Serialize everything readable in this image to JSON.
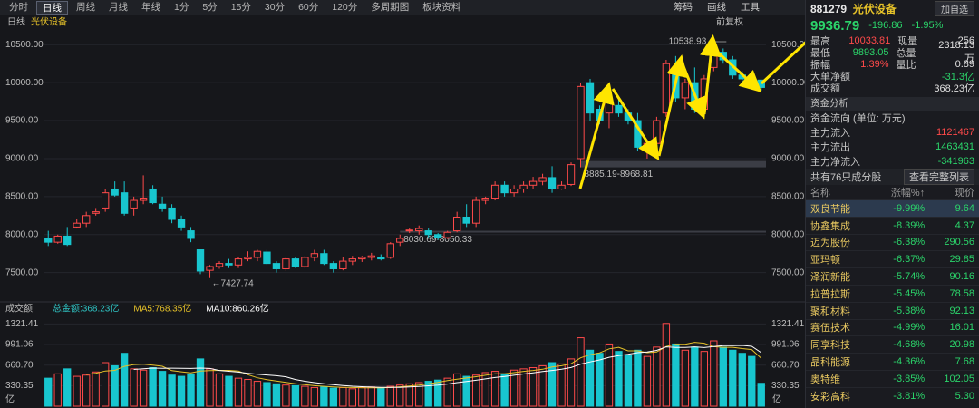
{
  "toolbar": {
    "tabs": [
      "分时",
      "日线",
      "周线",
      "月线",
      "年线",
      "1分",
      "5分",
      "15分",
      "30分",
      "60分",
      "120分",
      "多周期图",
      "板块资料"
    ],
    "active": "日线",
    "tools": [
      "筹码",
      "画线",
      "工具"
    ]
  },
  "chart_data": [
    {
      "type": "candlestick",
      "title": "光伏设备",
      "period": "日线",
      "adjust": "前复权",
      "up_color": "#ff4a4a",
      "down_color": "#18c6cf",
      "ylim": [
        7150,
        10670
      ],
      "yticks": [
        {
          "value": 10500,
          "label": "10500.00"
        },
        {
          "value": 10000,
          "label": "10000.00"
        },
        {
          "value": 9500,
          "label": "9500.00"
        },
        {
          "value": 9000,
          "label": "9000.00"
        },
        {
          "value": 8500,
          "label": "8500.00"
        },
        {
          "value": 8000,
          "label": "8000.00"
        },
        {
          "value": 7500,
          "label": "7500.00"
        }
      ],
      "open": [
        7950,
        7900,
        7980,
        8100,
        8150,
        8280,
        8350,
        8600,
        8550,
        8350,
        8450,
        8600,
        8400,
        8350,
        8200,
        8050,
        7800,
        7530,
        7580,
        7620,
        7600,
        7680,
        7700,
        7770,
        7620,
        7550,
        7680,
        7580,
        7700,
        7750,
        7620,
        7550,
        7650,
        7680,
        7700,
        7700,
        7700,
        7900,
        8050,
        8050,
        8050,
        8000,
        7960,
        8050,
        8230,
        8150,
        8450,
        8480,
        8650,
        8550,
        8600,
        8650,
        8700,
        8750,
        8600,
        8660,
        9000,
        10000,
        9650,
        9600,
        9700,
        9600,
        9500,
        9100,
        9200,
        9600,
        10200,
        9800,
        10000,
        9650,
        10200,
        10400,
        10300,
        10100,
        10050,
        10033.81
      ],
      "high": [
        8050,
        8000,
        8100,
        8200,
        8300,
        8350,
        8600,
        8700,
        8700,
        8500,
        8780,
        8650,
        8500,
        8400,
        8250,
        8100,
        7800,
        7600,
        7650,
        7680,
        7700,
        7780,
        7800,
        7800,
        7650,
        7700,
        7700,
        7720,
        7800,
        7800,
        7650,
        7700,
        7720,
        7720,
        7760,
        7740,
        7900,
        8000,
        8080,
        8120,
        8080,
        8020,
        8050,
        8300,
        8400,
        8500,
        8500,
        8700,
        8700,
        8650,
        8700,
        8760,
        8800,
        8900,
        8700,
        8950,
        10000,
        10050,
        9700,
        9800,
        9800,
        9650,
        9600,
        9250,
        9550,
        10300,
        10350,
        10050,
        10200,
        10100,
        10538.93,
        10450,
        10350,
        10150,
        10100,
        10033.81
      ],
      "low": [
        7850,
        7880,
        7850,
        8080,
        8100,
        8250,
        8300,
        8500,
        8250,
        8250,
        8400,
        8400,
        8300,
        8150,
        8050,
        7900,
        7480,
        7427.74,
        7550,
        7560,
        7560,
        7650,
        7650,
        7600,
        7500,
        7520,
        7560,
        7560,
        7650,
        7600,
        7500,
        7530,
        7600,
        7640,
        7660,
        7660,
        7680,
        7850,
        8020,
        8000,
        7960,
        7930,
        7940,
        8030,
        8100,
        8100,
        8400,
        8450,
        8500,
        8500,
        8550,
        8600,
        8650,
        8550,
        8590,
        8640,
        8885.19,
        9500,
        9450,
        9400,
        9550,
        9450,
        9100,
        9000,
        9150,
        9550,
        9750,
        9650,
        9600,
        9600,
        10150,
        10250,
        10050,
        9950,
        9950,
        9893.05
      ],
      "close": [
        7900,
        7980,
        7870,
        8150,
        8250,
        8300,
        8550,
        8520,
        8280,
        8450,
        8480,
        8420,
        8350,
        8200,
        8100,
        7950,
        7520,
        7580,
        7620,
        7600,
        7680,
        7700,
        7780,
        7620,
        7550,
        7680,
        7580,
        7700,
        7750,
        7620,
        7550,
        7650,
        7680,
        7700,
        7720,
        7680,
        7880,
        7950,
        8060,
        8080,
        8000,
        7960,
        8030,
        8230,
        8150,
        8450,
        8480,
        8650,
        8550,
        8600,
        8650,
        8700,
        8750,
        8600,
        8650,
        8920,
        9950,
        9600,
        9500,
        9750,
        9600,
        9500,
        9150,
        9200,
        9500,
        10250,
        9800,
        10000,
        9650,
        10050,
        10400,
        10300,
        10100,
        10050,
        10000,
        9936.79
      ],
      "annotations": [
        {
          "label": "10538.93",
          "value": 10538.93
        },
        {
          "label": "8885.19-8968.81",
          "range": [
            8885.19,
            8968.81
          ]
        },
        {
          "label": "8030.69-8050.33",
          "range": [
            8030.69,
            8050.33
          ]
        },
        {
          "label": "7427.74",
          "value": 7427.74
        }
      ]
    },
    {
      "type": "bar",
      "title": "成交额",
      "unit": "亿",
      "ylim": [
        0,
        1400
      ],
      "yticks": [
        1321.41,
        991.06,
        {
          "value": 660.7,
          "label": "660.70"
        },
        330.35
      ],
      "series": [
        {
          "name": "总金额:368.23亿",
          "color": "#2fc5c5",
          "values": [
            450,
            520,
            600,
            480,
            500,
            550,
            700,
            650,
            850,
            600,
            580,
            620,
            560,
            500,
            480,
            520,
            760,
            600,
            520,
            480,
            450,
            430,
            400,
            380,
            360,
            340,
            330,
            320,
            300,
            310,
            290,
            300,
            280,
            300,
            310,
            290,
            320,
            340,
            360,
            380,
            400,
            420,
            450,
            520,
            480,
            500,
            540,
            560,
            520,
            580,
            600,
            620,
            650,
            700,
            680,
            760,
            1100,
            900,
            850,
            1000,
            880,
            820,
            900,
            800,
            950,
            1330,
            1000,
            900,
            950,
            880,
            1050,
            950,
            900,
            850,
            800,
            368.23
          ]
        },
        {
          "name": "MA5:768.35亿",
          "color": "#e6c229",
          "values": [
            null,
            null,
            null,
            null,
            510,
            530,
            566,
            576,
            640,
            670,
            676,
            660,
            642,
            572,
            552,
            536,
            564,
            572,
            576,
            576,
            566,
            506,
            456,
            428,
            404,
            382,
            362,
            346,
            330,
            320,
            310,
            304,
            300,
            296,
            296,
            296,
            300,
            312,
            324,
            338,
            360,
            384,
            412,
            434,
            454,
            474,
            498,
            520,
            520,
            540,
            560,
            574,
            594,
            630,
            650,
            682,
            778,
            828,
            858,
            922,
            946,
            890,
            890,
            860,
            870,
            960,
            996,
            996,
            1026,
            1012,
            956,
            946,
            946,
            926,
            910,
            768.35
          ]
        },
        {
          "name": "MA10:860.26亿",
          "color": "#ffffff",
          "values": [
            null,
            null,
            null,
            null,
            null,
            null,
            null,
            null,
            null,
            590,
            603,
            613,
            609,
            611,
            609,
            606,
            612,
            607,
            574,
            562,
            549,
            530,
            514,
            502,
            490,
            472,
            429,
            401,
            379,
            362,
            346,
            333,
            321,
            313,
            308,
            303,
            302,
            304,
            310,
            317,
            328,
            340,
            356,
            379,
            396,
            417,
            439,
            461,
            477,
            497,
            517,
            537,
            557,
            575,
            595,
            621,
            677,
            711,
            744,
            786,
            814,
            834,
            860,
            870,
            897,
            954,
            944,
            944,
            954,
            942,
            959,
            972,
            972,
            977,
            962,
            860.26
          ]
        }
      ]
    }
  ],
  "quote": {
    "code": "881279",
    "name": "光伏设备",
    "add_button": "加自选",
    "price": "9936.79",
    "change": "-196.86",
    "change_pct": "-1.95%",
    "stats": [
      [
        "最高",
        "10033.81",
        "现量",
        "256"
      ],
      [
        "最低",
        "9893.05",
        "总量",
        "2318.13万"
      ],
      [
        "振幅",
        "1.39%",
        "量比",
        "0.89"
      ]
    ],
    "big_net": [
      "大单净额",
      "-31.3亿"
    ],
    "turnover": [
      "成交额",
      "368.23亿"
    ]
  },
  "fund": {
    "section": "资金分析",
    "header": "资金流向 (单位: 万元)",
    "rows": [
      [
        "主力流入",
        "1121467"
      ],
      [
        "主力流出",
        "1463431"
      ],
      [
        "主力净流入",
        "-341963"
      ]
    ]
  },
  "constituents": {
    "count": "共有76只成分股",
    "link": "查看完整列表",
    "columns": [
      "名称",
      "涨幅%↑",
      "现价"
    ],
    "rows": [
      [
        "双良节能",
        "-9.99%",
        "9.64"
      ],
      [
        "协鑫集成",
        "-8.39%",
        "4.37"
      ],
      [
        "迈为股份",
        "-6.38%",
        "290.56"
      ],
      [
        "亚玛顿",
        "-6.37%",
        "29.85"
      ],
      [
        "泽润新能",
        "-5.74%",
        "90.16"
      ],
      [
        "拉普拉斯",
        "-5.45%",
        "78.58"
      ],
      [
        "聚和材料",
        "-5.38%",
        "92.13"
      ],
      [
        "赛伍技术",
        "-4.99%",
        "16.01"
      ],
      [
        "同享科技",
        "-4.68%",
        "20.98"
      ],
      [
        "晶科能源",
        "-4.36%",
        "7.68"
      ],
      [
        "奥特维",
        "-3.85%",
        "102.05"
      ],
      [
        "安彩高科",
        "-3.81%",
        "5.30"
      ]
    ]
  }
}
